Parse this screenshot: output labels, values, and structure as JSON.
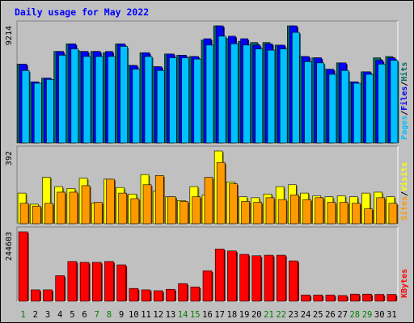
{
  "chart_data": {
    "type": "bar",
    "title": "Daily usage for May 2022",
    "days": [
      "1",
      "2",
      "3",
      "4",
      "5",
      "6",
      "7",
      "8",
      "9",
      "10",
      "11",
      "12",
      "13",
      "14",
      "15",
      "16",
      "17",
      "18",
      "19",
      "20",
      "21",
      "22",
      "23",
      "24",
      "25",
      "26",
      "27",
      "28",
      "29",
      "30",
      "31"
    ],
    "weekend_days": [
      "1",
      "7",
      "8",
      "14",
      "15",
      "21",
      "22",
      "28",
      "29"
    ],
    "panels": [
      {
        "name": "pages-files-hits",
        "ylabel": "9214",
        "ymax": 9214,
        "series": [
          {
            "name": "Hits",
            "color": "#006666",
            "values": [
              6200,
              4800,
              5100,
              7200,
              7800,
              7200,
              7200,
              7100,
              7800,
              6100,
              7100,
              6000,
              7000,
              6900,
              6800,
              8100,
              9214,
              8200,
              8000,
              7900,
              7900,
              7700,
              9214,
              6800,
              6700,
              5800,
              6300,
              4800,
              5600,
              6700,
              6800
            ]
          },
          {
            "name": "Files",
            "color": "#0000ff",
            "values": [
              6200,
              4800,
              5100,
              7200,
              7800,
              7200,
              7200,
              7200,
              7800,
              6100,
              7100,
              6000,
              7000,
              6900,
              6800,
              8200,
              9214,
              8400,
              8200,
              7700,
              7800,
              7700,
              9214,
              6800,
              6700,
              5800,
              6300,
              4800,
              5600,
              6500,
              6700
            ]
          },
          {
            "name": "Pages",
            "color": "#00c0ff",
            "values": [
              5700,
              4700,
              5000,
              6900,
              7400,
              6800,
              6800,
              6800,
              7600,
              5800,
              6800,
              5700,
              6700,
              6700,
              6600,
              7700,
              8400,
              7800,
              7700,
              7400,
              7300,
              7400,
              8700,
              6400,
              6300,
              5400,
              5700,
              4700,
              5400,
              6200,
              6500
            ]
          }
        ],
        "legend": [
          {
            "text": "Pages",
            "color": "#00c0ff"
          },
          {
            "text": "/",
            "color": "#000000"
          },
          {
            "text": "Files",
            "color": "#0000ff"
          },
          {
            "text": "/",
            "color": "#000000"
          },
          {
            "text": "Hits",
            "color": "#006666"
          }
        ]
      },
      {
        "name": "visits-sites",
        "ylabel": "392",
        "ymax": 392,
        "series": [
          {
            "name": "Visits",
            "color": "#ffff00",
            "values": [
              165,
              105,
              250,
              200,
              190,
              245,
              110,
              240,
              195,
              160,
              265,
              175,
              145,
              125,
              200,
              155,
              392,
              225,
              145,
              140,
              160,
              200,
              210,
              165,
              150,
              145,
              150,
              145,
              165,
              170,
              145
            ]
          },
          {
            "name": "Sites",
            "color": "#ff9900",
            "values": [
              110,
              95,
              110,
              170,
              170,
              205,
              115,
              240,
              165,
              135,
              210,
              260,
              145,
              120,
              145,
              250,
              330,
              215,
              120,
              115,
              140,
              130,
              155,
              130,
              140,
              115,
              115,
              110,
              80,
              140,
              110
            ]
          }
        ],
        "legend": [
          {
            "text": "Sites",
            "color": "#ff9900"
          },
          {
            "text": "/",
            "color": "#000000"
          },
          {
            "text": "Visits",
            "color": "#ffff00"
          }
        ]
      },
      {
        "name": "kbytes",
        "ylabel": "244603",
        "ymax": 244603,
        "series": [
          {
            "name": "KBytes",
            "color": "#ff0000",
            "values": [
              244603,
              40000,
              40000,
              90000,
              140000,
              137000,
              137000,
              140000,
              128000,
              45000,
              40000,
              37000,
              42000,
              62000,
              50000,
              107000,
              184000,
              177000,
              165000,
              160000,
              162000,
              162000,
              142000,
              22000,
              22000,
              22000,
              20000,
              25000,
              25000,
              24000,
              24000
            ]
          }
        ],
        "legend": [
          {
            "text": "KBytes",
            "color": "#ff0000"
          }
        ]
      }
    ]
  }
}
